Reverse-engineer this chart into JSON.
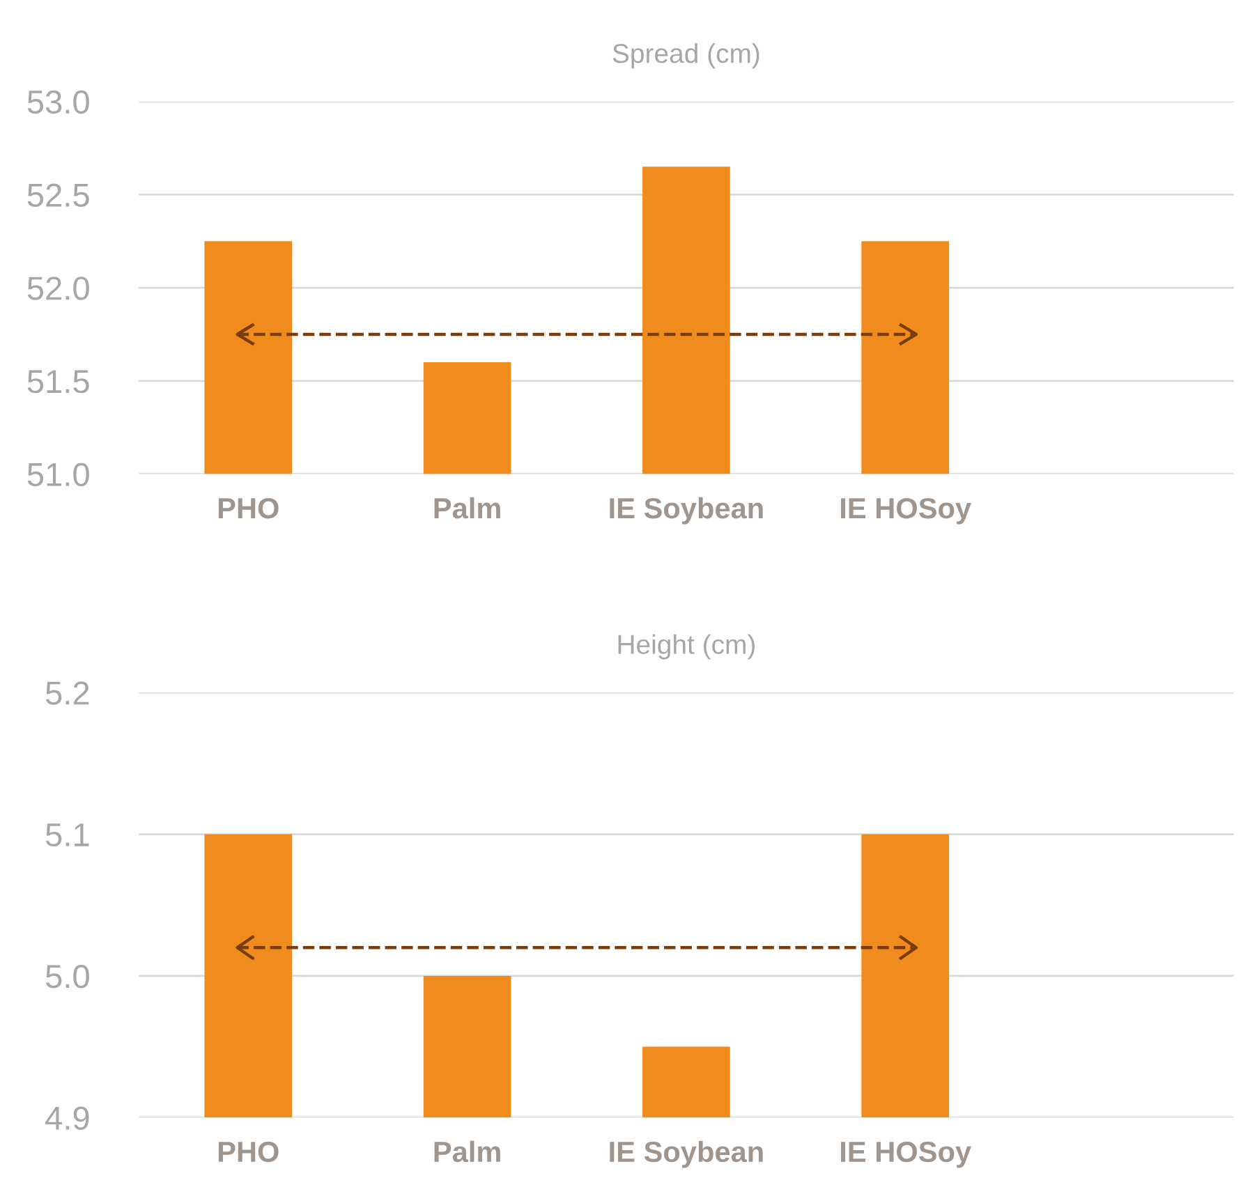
{
  "chart_data": [
    {
      "type": "bar",
      "title": "Spread (cm)",
      "categories": [
        "PHO",
        "Palm",
        "IE Soybean",
        "IE HOSoy",
        null
      ],
      "values": [
        52.25,
        51.6,
        52.65,
        52.25,
        null
      ],
      "color": "#f08c1e",
      "ylim": [
        51,
        53
      ],
      "yticks": [
        {
          "value": 51,
          "label": "51.0"
        },
        {
          "value": 51.5,
          "label": "51.5"
        },
        {
          "value": 52,
          "label": "52.0"
        },
        {
          "value": 52.5,
          "label": "52.5"
        },
        {
          "value": 53,
          "label": "53.0"
        }
      ],
      "grid": "y",
      "ref_lines": [
        {
          "axis": "y",
          "value": 51.75,
          "color": "#7a3c0a",
          "line_style": "dashed"
        }
      ]
    },
    {
      "type": "bar",
      "title": "Height (cm)",
      "categories": [
        "PHO",
        "Palm",
        "IE Soybean",
        "IE HOSoy",
        null
      ],
      "values": [
        5.1,
        5.0,
        4.95,
        5.1,
        null
      ],
      "color": "#f08c1e",
      "ylim": [
        4.9,
        5.2
      ],
      "yticks": [
        4.9,
        {
          "value": 5,
          "label": "5.0"
        },
        5.1,
        5.2
      ],
      "grid": "y",
      "ref_lines": [
        {
          "axis": "y",
          "value": 5.02,
          "color": "#7a3c0a",
          "line_style": "dashed"
        }
      ]
    }
  ]
}
